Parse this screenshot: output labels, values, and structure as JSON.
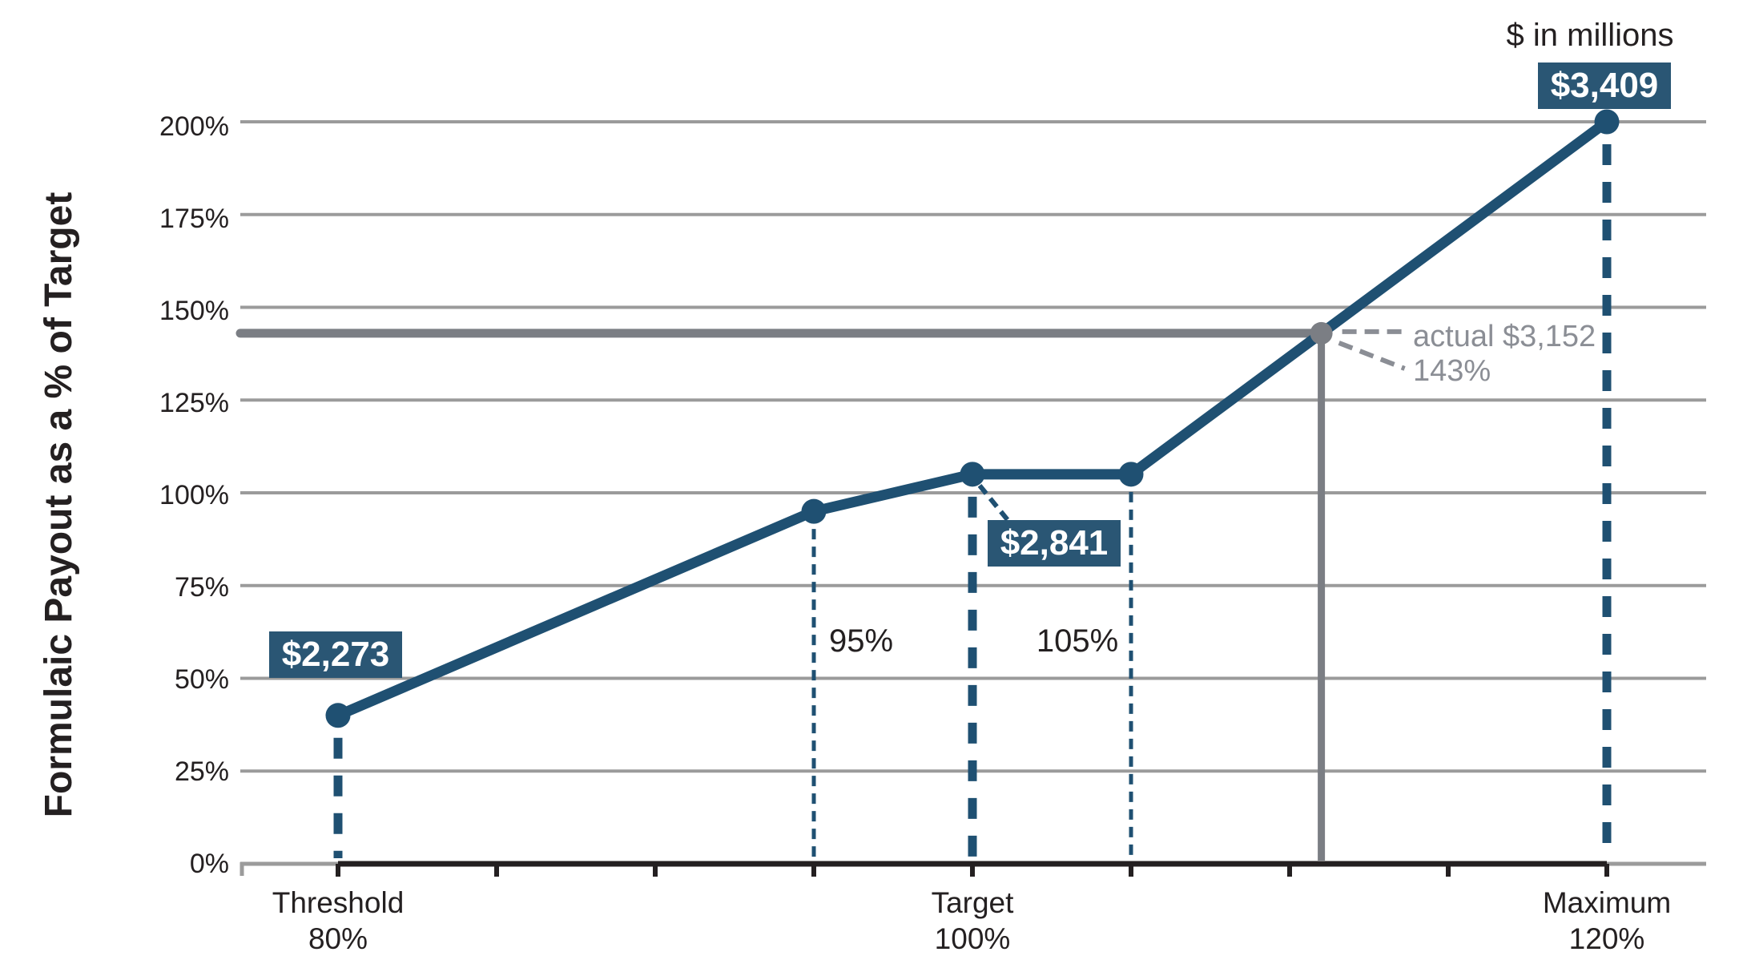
{
  "colors": {
    "line_blue": "#1f5072",
    "box_blue": "#2a5674",
    "gridline": "#9b9b9b",
    "axis_dark": "#242021",
    "text_dark": "#242021",
    "actual_gray": "#7b7e84",
    "annotation_gray": "#8b8e95"
  },
  "chart_data": {
    "type": "line",
    "units_note": "$ in millions",
    "x_axis": {
      "min": 80,
      "max": 120,
      "ticks": [
        80,
        85,
        90,
        95,
        100,
        105,
        110,
        115,
        120
      ],
      "labeled_ticks": [
        {
          "value": 80,
          "line1": "Threshold",
          "line2": "80%"
        },
        {
          "value": 100,
          "line1": "Target",
          "line2": "100%"
        },
        {
          "value": 120,
          "line1": "Maximum",
          "line2": "120%"
        }
      ]
    },
    "y_axis": {
      "title": "Formulaic Payout as a % of Target",
      "min": 0,
      "max": 200,
      "tick_values": [
        0,
        25,
        50,
        75,
        100,
        125,
        150,
        175,
        200
      ],
      "tick_labels": [
        "0%",
        "25%",
        "50%",
        "75%",
        "100%",
        "125%",
        "150%",
        "175%",
        "200%"
      ],
      "grid": true
    },
    "series": [
      {
        "name": "formulaic-payout-curve",
        "points": [
          {
            "x": 80,
            "y": 40
          },
          {
            "x": 95,
            "y": 95
          },
          {
            "x": 100,
            "y": 105
          },
          {
            "x": 105,
            "y": 105
          },
          {
            "x": 120,
            "y": 200
          }
        ]
      }
    ],
    "actual_point": {
      "x": 111,
      "y": 143,
      "label_line1": "actual $3,152",
      "label_line2": "143%"
    },
    "value_labels": [
      {
        "at_x": 80,
        "text": "$2,273"
      },
      {
        "at_x": 100,
        "text": "$2,841"
      },
      {
        "at_x": 120,
        "text": "$3,409"
      }
    ],
    "inner_labels": [
      {
        "at_x": 95,
        "text": "95%"
      },
      {
        "at_x": 105,
        "text": "105%"
      }
    ]
  }
}
